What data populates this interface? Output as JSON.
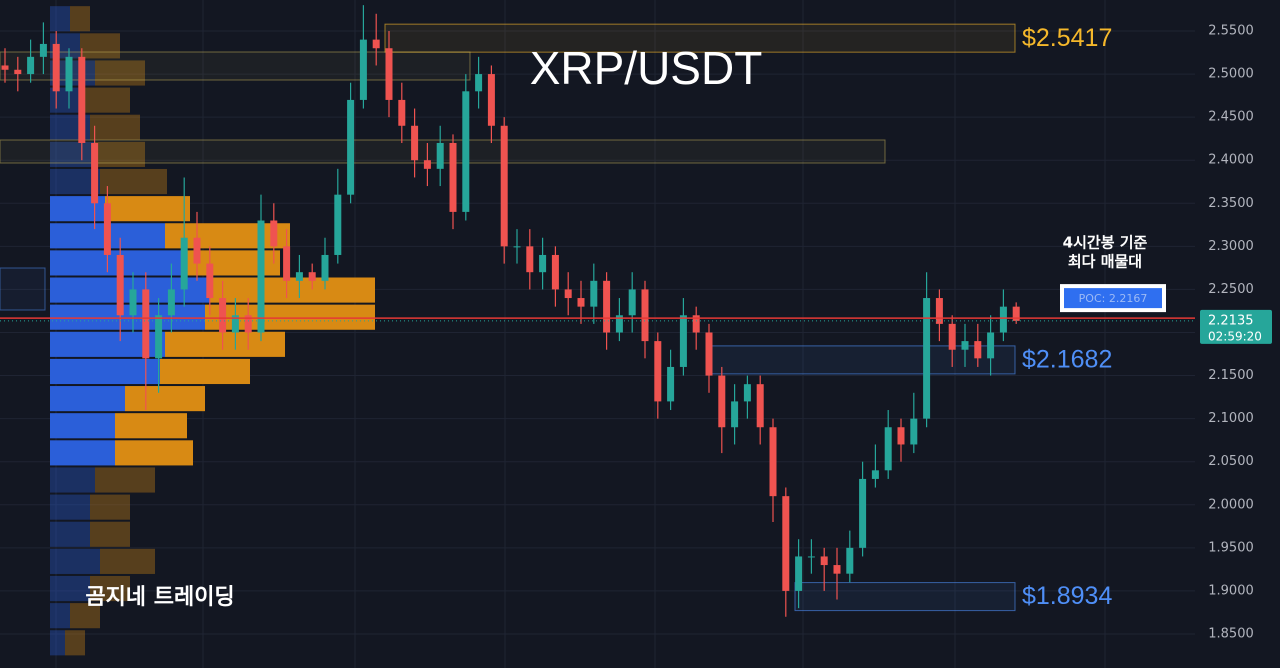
{
  "chart_data": {
    "type": "candlestick",
    "title": "XRP/USDT",
    "watermark": "곰지네 트레이딩",
    "up_color": "#26a69a",
    "down_color": "#ef5350",
    "open": [
      2.51,
      2.505,
      2.5,
      2.52,
      2.535,
      2.48,
      2.52,
      2.42,
      2.35,
      2.29,
      2.22,
      2.25,
      2.17,
      2.22,
      2.25,
      2.31,
      2.28,
      2.24,
      2.2,
      2.22,
      2.2,
      2.33,
      2.3,
      2.26,
      2.27,
      2.26,
      2.29,
      2.36,
      2.47,
      2.54,
      2.53,
      2.47,
      2.44,
      2.4,
      2.39,
      2.42,
      2.34,
      2.48,
      2.5,
      2.44,
      2.3,
      2.3,
      2.27,
      2.29,
      2.25,
      2.24,
      2.23,
      2.26,
      2.2,
      2.22,
      2.25,
      2.19,
      2.12,
      2.16,
      2.22,
      2.2,
      2.15,
      2.09,
      2.12,
      2.14,
      2.09,
      2.01,
      1.9,
      1.94,
      1.94,
      1.93,
      1.92,
      1.95,
      2.03,
      2.04,
      2.09,
      2.07,
      2.1,
      2.24,
      2.21,
      2.18,
      2.19,
      2.17,
      2.2,
      2.23
    ],
    "high": [
      2.53,
      2.52,
      2.54,
      2.56,
      2.55,
      2.53,
      2.53,
      2.44,
      2.37,
      2.31,
      2.27,
      2.27,
      2.24,
      2.28,
      2.38,
      2.34,
      2.3,
      2.26,
      2.24,
      2.24,
      2.36,
      2.35,
      2.32,
      2.29,
      2.28,
      2.31,
      2.39,
      2.49,
      2.58,
      2.57,
      2.55,
      2.49,
      2.46,
      2.42,
      2.44,
      2.43,
      2.5,
      2.52,
      2.51,
      2.45,
      2.32,
      2.32,
      2.31,
      2.3,
      2.27,
      2.26,
      2.28,
      2.27,
      2.24,
      2.27,
      2.26,
      2.2,
      2.18,
      2.24,
      2.23,
      2.21,
      2.16,
      2.14,
      2.15,
      2.15,
      2.1,
      2.02,
      1.96,
      1.96,
      1.95,
      1.95,
      1.97,
      2.05,
      2.07,
      2.11,
      2.1,
      2.13,
      2.27,
      2.25,
      2.22,
      2.21,
      2.21,
      2.22,
      2.25,
      2.235
    ],
    "low": [
      2.49,
      2.48,
      2.49,
      2.5,
      2.46,
      2.46,
      2.4,
      2.32,
      2.27,
      2.19,
      2.2,
      2.11,
      2.13,
      2.2,
      2.23,
      2.26,
      2.22,
      2.18,
      2.18,
      2.18,
      2.19,
      2.28,
      2.24,
      2.24,
      2.25,
      2.25,
      2.28,
      2.35,
      2.46,
      2.51,
      2.45,
      2.42,
      2.38,
      2.37,
      2.37,
      2.32,
      2.33,
      2.46,
      2.42,
      2.28,
      2.28,
      2.25,
      2.25,
      2.23,
      2.22,
      2.21,
      2.21,
      2.18,
      2.19,
      2.2,
      2.17,
      2.1,
      2.11,
      2.15,
      2.18,
      2.13,
      2.06,
      2.07,
      2.1,
      2.07,
      1.98,
      1.87,
      1.88,
      1.92,
      1.9,
      1.89,
      1.91,
      1.94,
      2.02,
      2.03,
      2.05,
      2.06,
      2.09,
      2.19,
      2.16,
      2.16,
      2.16,
      2.15,
      2.19,
      2.21
    ],
    "close": [
      2.505,
      2.5,
      2.52,
      2.535,
      2.48,
      2.52,
      2.42,
      2.35,
      2.29,
      2.22,
      2.25,
      2.17,
      2.22,
      2.25,
      2.31,
      2.28,
      2.24,
      2.2,
      2.22,
      2.2,
      2.33,
      2.3,
      2.26,
      2.27,
      2.26,
      2.29,
      2.36,
      2.47,
      2.54,
      2.53,
      2.47,
      2.44,
      2.4,
      2.39,
      2.42,
      2.34,
      2.48,
      2.5,
      2.44,
      2.3,
      2.3,
      2.27,
      2.29,
      2.25,
      2.24,
      2.23,
      2.26,
      2.2,
      2.22,
      2.25,
      2.19,
      2.12,
      2.16,
      2.22,
      2.2,
      2.15,
      2.09,
      2.12,
      2.14,
      2.09,
      2.01,
      1.9,
      1.94,
      1.94,
      1.93,
      1.92,
      1.95,
      2.03,
      2.04,
      2.09,
      2.07,
      2.1,
      2.24,
      2.21,
      2.18,
      2.19,
      2.17,
      2.2,
      2.23,
      2.2135
    ],
    "ylim": [
      1.8105,
      2.586
    ],
    "yticks": [
      {
        "value": 1.85,
        "label": "1.8500"
      },
      {
        "value": 1.9,
        "label": "1.9000"
      },
      {
        "value": 1.95,
        "label": "1.9500"
      },
      {
        "value": 2.0,
        "label": "2.0000"
      },
      {
        "value": 2.05,
        "label": "2.0500"
      },
      {
        "value": 2.1,
        "label": "2.1000"
      },
      {
        "value": 2.15,
        "label": "2.1500"
      },
      {
        "value": 2.2,
        "label": "2.2000"
      },
      {
        "value": 2.25,
        "label": "2.2500"
      },
      {
        "value": 2.3,
        "label": "2.3000"
      },
      {
        "value": 2.35,
        "label": "2.3500"
      },
      {
        "value": 2.4,
        "label": "2.4000"
      },
      {
        "value": 2.45,
        "label": "2.4500"
      },
      {
        "value": 2.5,
        "label": "2.5000"
      },
      {
        "value": 2.55,
        "label": "2.5500"
      }
    ],
    "grid": true,
    "levels": [
      {
        "value": 2.5417,
        "label": "$2.5417",
        "color": "#f5b82b"
      },
      {
        "value": 2.1682,
        "label": "$2.1682",
        "color": "#4f8ff7"
      },
      {
        "value": 1.8934,
        "label": "$1.8934",
        "color": "#4f8ff7"
      }
    ],
    "poc": {
      "value": 2.2167,
      "label": "POC: 2.2167",
      "caption": [
        "4시간봉 기준",
        "최다 매물대"
      ]
    },
    "last_price": {
      "value": 2.2135,
      "countdown": "02:59:20"
    },
    "volume_profile": {
      "bins": [
        2.58,
        2.5485,
        2.517,
        2.4855,
        2.454,
        2.4225,
        2.391,
        2.3595,
        2.328,
        2.2965,
        2.265,
        2.2335,
        2.202,
        2.1705,
        2.139,
        2.1075,
        2.076,
        2.0445,
        2.013,
        1.9815,
        1.95,
        1.9185,
        1.887,
        1.8555,
        1.824
      ],
      "up": [
        20,
        30,
        45,
        35,
        40,
        45,
        50,
        55,
        115,
        135,
        160,
        155,
        115,
        110,
        75,
        65,
        65,
        45,
        40,
        40,
        50,
        40,
        20,
        15
      ],
      "down": [
        20,
        40,
        50,
        45,
        50,
        50,
        67,
        85,
        125,
        95,
        165,
        170,
        120,
        90,
        80,
        72,
        78,
        60,
        40,
        40,
        55,
        40,
        30,
        20
      ],
      "up_color": "#2b5fd9",
      "down_color": "#d88a14",
      "value_area": [
        2.04,
        2.39
      ]
    }
  }
}
